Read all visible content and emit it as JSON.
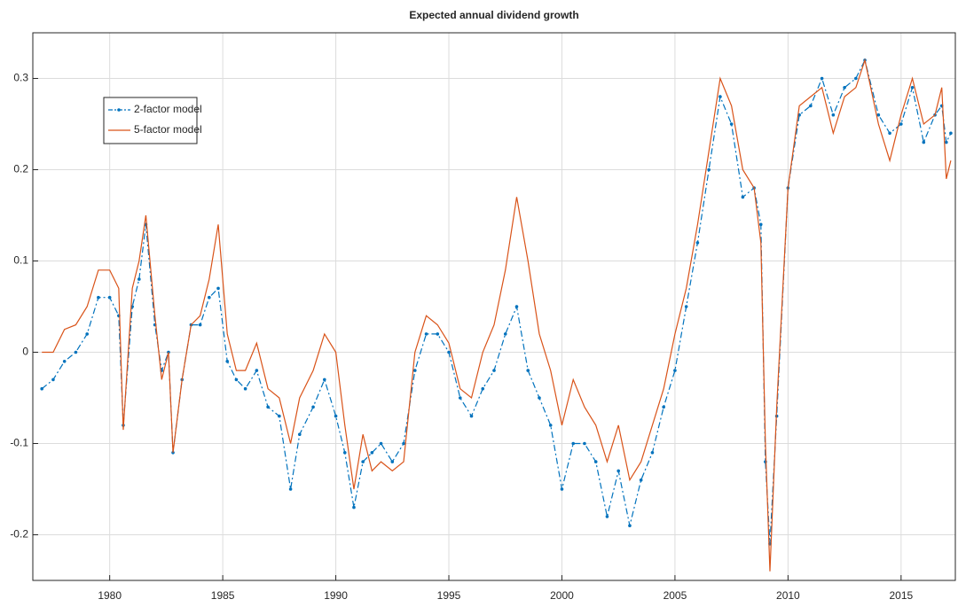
{
  "chart_data": {
    "type": "line",
    "title": "Expected annual dividend growth",
    "x": [
      1977.0,
      1977.5,
      1978.0,
      1978.5,
      1979.0,
      1979.5,
      1980.0,
      1980.4,
      1980.6,
      1981.0,
      1981.3,
      1981.6,
      1982.0,
      1982.3,
      1982.6,
      1982.8,
      1983.2,
      1983.6,
      1984.0,
      1984.4,
      1984.8,
      1985.2,
      1985.6,
      1986.0,
      1986.5,
      1987.0,
      1987.5,
      1988.0,
      1988.4,
      1989.0,
      1989.5,
      1990.0,
      1990.4,
      1990.8,
      1991.2,
      1991.6,
      1992.0,
      1992.5,
      1993.0,
      1993.5,
      1994.0,
      1994.5,
      1995.0,
      1995.5,
      1996.0,
      1996.5,
      1997.0,
      1997.5,
      1998.0,
      1998.5,
      1999.0,
      1999.5,
      2000.0,
      2000.5,
      2001.0,
      2001.5,
      2002.0,
      2002.5,
      2003.0,
      2003.5,
      2004.0,
      2004.5,
      2005.0,
      2005.5,
      2006.0,
      2006.5,
      2007.0,
      2007.5,
      2008.0,
      2008.5,
      2008.8,
      2009.0,
      2009.2,
      2009.5,
      2010.0,
      2010.5,
      2011.0,
      2011.5,
      2012.0,
      2012.5,
      2013.0,
      2013.4,
      2014.0,
      2014.5,
      2015.0,
      2015.5,
      2016.0,
      2016.5,
      2016.8,
      2017.0,
      2017.2
    ],
    "series": [
      {
        "name": "2-factor model",
        "color": "#0072bd",
        "style": "dash-dot-marker",
        "values": [
          -0.04,
          -0.03,
          -0.01,
          0.0,
          0.02,
          0.06,
          0.06,
          0.04,
          -0.08,
          0.05,
          0.08,
          0.14,
          0.03,
          -0.02,
          0.0,
          -0.11,
          -0.03,
          0.03,
          0.03,
          0.06,
          0.07,
          -0.01,
          -0.03,
          -0.04,
          -0.02,
          -0.06,
          -0.07,
          -0.15,
          -0.09,
          -0.06,
          -0.03,
          -0.07,
          -0.11,
          -0.17,
          -0.12,
          -0.11,
          -0.1,
          -0.12,
          -0.1,
          -0.02,
          0.02,
          0.02,
          0.0,
          -0.05,
          -0.07,
          -0.04,
          -0.02,
          0.02,
          0.05,
          -0.02,
          -0.05,
          -0.08,
          -0.15,
          -0.1,
          -0.1,
          -0.12,
          -0.18,
          -0.13,
          -0.19,
          -0.14,
          -0.11,
          -0.06,
          -0.02,
          0.05,
          0.12,
          0.2,
          0.28,
          0.25,
          0.17,
          0.18,
          0.14,
          -0.12,
          -0.21,
          -0.07,
          0.18,
          0.26,
          0.27,
          0.3,
          0.26,
          0.29,
          0.3,
          0.32,
          0.26,
          0.24,
          0.25,
          0.29,
          0.23,
          0.26,
          0.27,
          0.23,
          0.24
        ]
      },
      {
        "name": "5-factor model",
        "color": "#d95319",
        "style": "solid",
        "values": [
          0.0,
          0.0,
          0.025,
          0.03,
          0.05,
          0.09,
          0.09,
          0.07,
          -0.085,
          0.07,
          0.1,
          0.15,
          0.04,
          -0.03,
          0.0,
          -0.11,
          -0.03,
          0.03,
          0.04,
          0.08,
          0.14,
          0.02,
          -0.02,
          -0.02,
          0.01,
          -0.04,
          -0.05,
          -0.1,
          -0.05,
          -0.02,
          0.02,
          0.0,
          -0.08,
          -0.15,
          -0.09,
          -0.13,
          -0.12,
          -0.13,
          -0.12,
          0.0,
          0.04,
          0.03,
          0.01,
          -0.04,
          -0.05,
          0.0,
          0.03,
          0.09,
          0.17,
          0.1,
          0.02,
          -0.02,
          -0.08,
          -0.03,
          -0.06,
          -0.08,
          -0.12,
          -0.08,
          -0.14,
          -0.12,
          -0.08,
          -0.04,
          0.02,
          0.07,
          0.14,
          0.22,
          0.3,
          0.27,
          0.2,
          0.18,
          0.12,
          -0.1,
          -0.24,
          -0.06,
          0.18,
          0.27,
          0.28,
          0.29,
          0.24,
          0.28,
          0.29,
          0.32,
          0.25,
          0.21,
          0.26,
          0.3,
          0.25,
          0.26,
          0.29,
          0.19,
          0.21
        ]
      }
    ],
    "xlim": [
      1976.6,
      2017.4
    ],
    "xticks": [
      1980,
      1985,
      1990,
      1995,
      2000,
      2005,
      2010,
      2015
    ],
    "ylim": [
      -0.25,
      0.35
    ],
    "yticks": [
      -0.2,
      -0.1,
      0,
      0.1,
      0.2,
      0.3
    ],
    "grid": true,
    "legend": "upper-left"
  }
}
